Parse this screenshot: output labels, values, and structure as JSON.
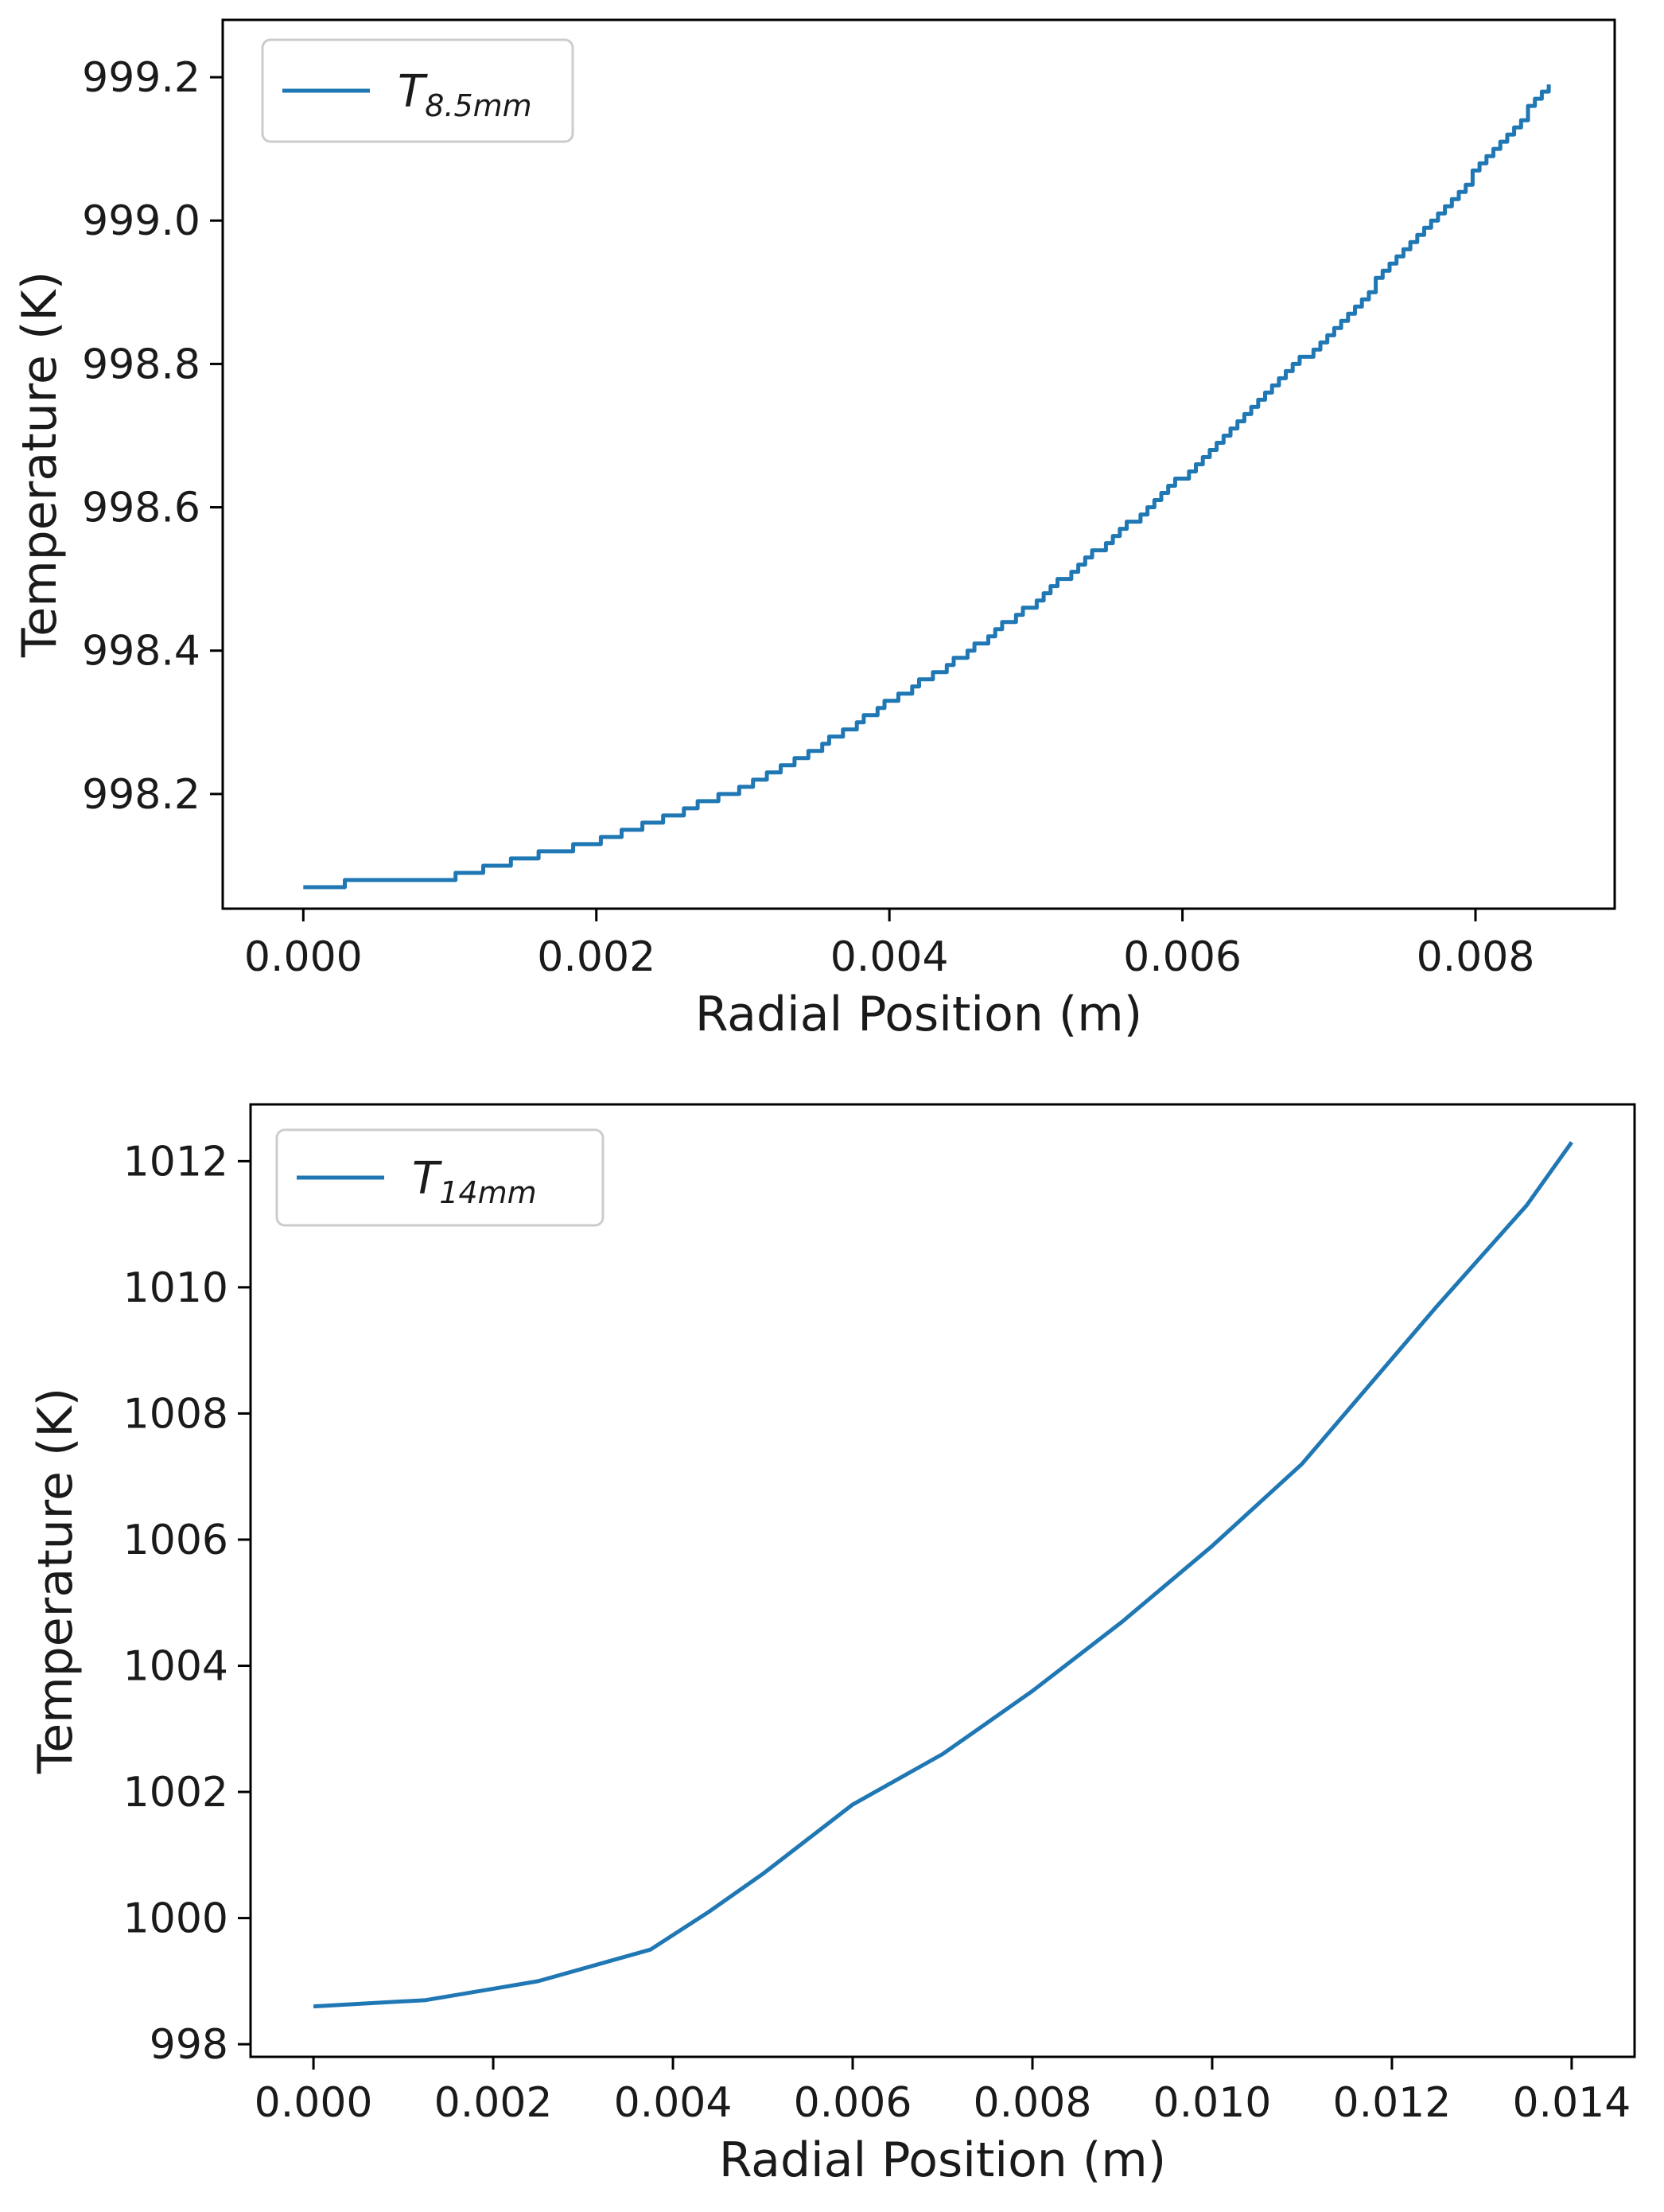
{
  "chart_data": [
    {
      "type": "line",
      "xlabel": "Radial Position (m)",
      "ylabel": "Temperature (K)",
      "xlim": [
        -0.00055,
        0.00895
      ],
      "ylim": [
        998.04,
        999.28
      ],
      "xticks": [
        0.0,
        0.002,
        0.004,
        0.006,
        0.008
      ],
      "xtick_labels": [
        "0.000",
        "0.002",
        "0.004",
        "0.006",
        "0.008"
      ],
      "yticks": [
        998.2,
        998.4,
        998.6,
        998.8,
        999.0,
        999.2
      ],
      "ytick_labels": [
        "998.2",
        "998.4",
        "998.6",
        "998.8",
        "999.0",
        "999.2"
      ],
      "grid": false,
      "legend_position": "upper-left",
      "series": [
        {
          "name": "T_8.5mm",
          "legend_main": "T",
          "legend_sub": "8.5mm",
          "color": "#1f77b4",
          "step": 0.01,
          "x": [
            0.0,
            0.0005,
            0.001,
            0.0015,
            0.002,
            0.0025,
            0.003,
            0.0035,
            0.004,
            0.0045,
            0.005,
            0.0055,
            0.006,
            0.0065,
            0.007,
            0.0075,
            0.008,
            0.0085
          ],
          "y": [
            998.07,
            998.08,
            998.085,
            998.11,
            998.135,
            998.17,
            998.21,
            998.265,
            998.33,
            998.395,
            998.47,
            998.555,
            998.645,
            998.745,
            998.845,
            998.955,
            999.07,
            999.19
          ]
        }
      ]
    },
    {
      "type": "line",
      "xlabel": "Radial Position (m)",
      "ylabel": "Temperature (K)",
      "xlim": [
        -0.0007,
        0.0147
      ],
      "ylim": [
        997.8,
        1012.9
      ],
      "xticks": [
        0.0,
        0.002,
        0.004,
        0.006,
        0.008,
        0.01,
        0.012,
        0.014
      ],
      "xtick_labels": [
        "0.000",
        "0.002",
        "0.004",
        "0.006",
        "0.008",
        "0.010",
        "0.012",
        "0.014"
      ],
      "yticks": [
        998,
        1000,
        1002,
        1004,
        1006,
        1008,
        1010,
        1012
      ],
      "ytick_labels": [
        "998",
        "1000",
        "1002",
        "1004",
        "1006",
        "1008",
        "1010",
        "1012"
      ],
      "grid": false,
      "legend_position": "upper-left",
      "series": [
        {
          "name": "T_14mm",
          "legend_main": "T",
          "legend_sub": "14mm",
          "color": "#1f77b4",
          "x": [
            0.0,
            0.00125,
            0.0025,
            0.00375,
            0.0044,
            0.005,
            0.006,
            0.007,
            0.0075,
            0.008,
            0.009,
            0.01,
            0.011,
            0.0125,
            0.0135,
            0.014
          ],
          "y": [
            998.6,
            998.7,
            999.0,
            999.5,
            1000.1,
            1000.7,
            1001.8,
            1002.6,
            1003.1,
            1003.6,
            1004.7,
            1005.9,
            1007.2,
            1009.7,
            1011.3,
            1012.3
          ]
        }
      ]
    }
  ]
}
